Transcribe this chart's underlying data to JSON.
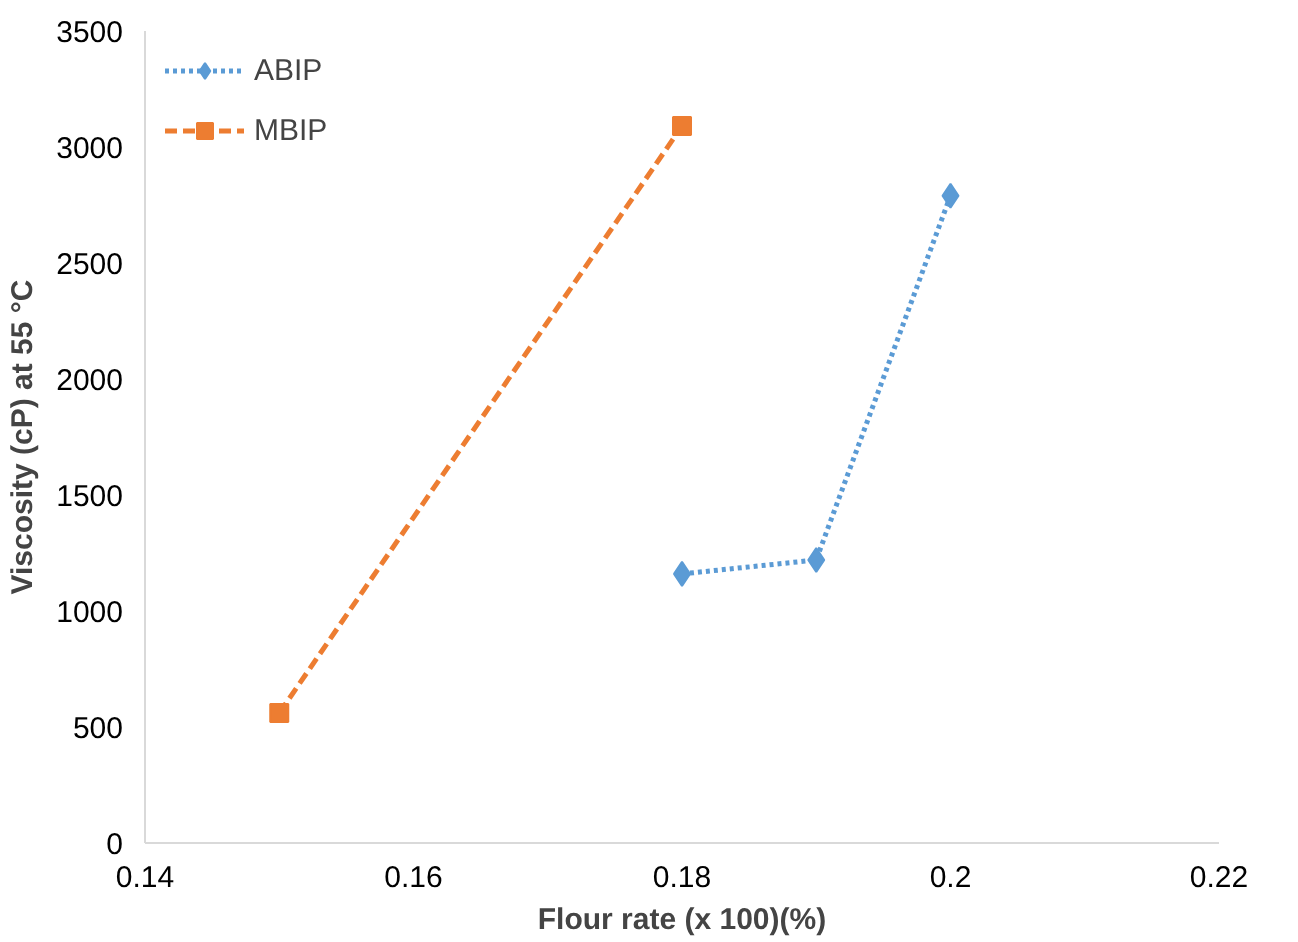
{
  "chart_data": {
    "type": "line",
    "xlabel": "Flour rate (x 100)(%)",
    "ylabel": "Viscosity (cP) at 55 °C",
    "xlim": [
      0.14,
      0.22
    ],
    "xticks": [
      {
        "value": 0.14,
        "label": "0.14"
      },
      {
        "value": 0.16,
        "label": "0.16"
      },
      {
        "value": 0.18,
        "label": "0.18"
      },
      {
        "value": 0.2,
        "label": "0.2"
      },
      {
        "value": 0.22,
        "label": "0.22"
      }
    ],
    "ylim": [
      0,
      3500
    ],
    "yticks": [
      0,
      500,
      1000,
      1500,
      2000,
      2500,
      3000,
      3500
    ],
    "grid": false,
    "legend": "top left",
    "series": [
      {
        "name": "ABIP",
        "color": "#5b9bd5",
        "x": [
          0.18,
          0.19,
          0.2
        ],
        "values": [
          1160,
          1220,
          2790
        ],
        "marker": "diamond",
        "line_style": "dotted"
      },
      {
        "name": "MBIP",
        "color": "#ed7d31",
        "x": [
          0.15,
          0.18
        ],
        "values": [
          560,
          3090
        ],
        "marker": "square",
        "line_style": "dashed"
      }
    ]
  }
}
